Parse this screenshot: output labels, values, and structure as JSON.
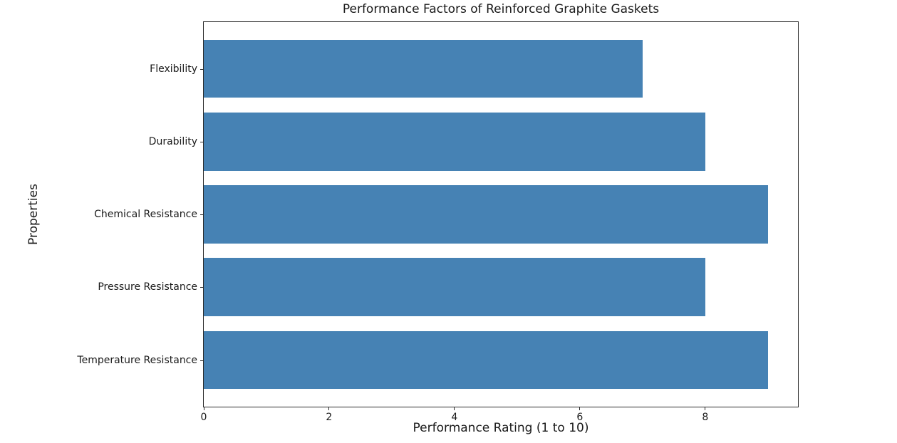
{
  "chart_data": {
    "type": "bar",
    "orientation": "horizontal",
    "title": "Performance Factors of Reinforced Graphite Gaskets",
    "xlabel": "Performance Rating (1 to 10)",
    "ylabel": "Properties",
    "categories": [
      "Flexibility",
      "Durability",
      "Chemical Resistance",
      "Pressure Resistance",
      "Temperature Resistance"
    ],
    "values": [
      7,
      8,
      9,
      8,
      9
    ],
    "xticks": [
      0,
      2,
      4,
      6,
      8
    ],
    "xlim": [
      0,
      9.48
    ],
    "grid": false,
    "legend": "none",
    "bar_color": "#4682b4",
    "axis_color": "#2b2b2b",
    "text_color": "#1a1a1a",
    "background_color": "#ffffff"
  }
}
